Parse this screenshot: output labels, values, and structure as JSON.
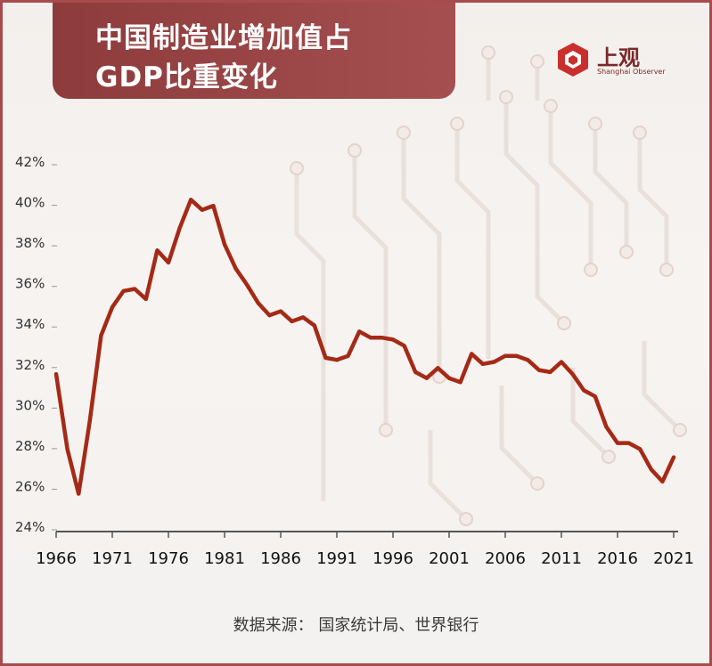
{
  "header": {
    "title_line1": "中国制造业增加值占",
    "title_line2": "GDP比重变化"
  },
  "logo": {
    "name": "上观",
    "sub": "Shanghai Observer",
    "icon": "shanghai-observer-logo-icon"
  },
  "footer": {
    "source": "数据来源： 国家统计局、世界银行"
  },
  "colors": {
    "line": "#a52a16",
    "header_bg": "#9a4748",
    "frame": "#a84b4c"
  },
  "chart_data": {
    "type": "line",
    "title": "中国制造业增加值占GDP比重变化",
    "xlabel": "",
    "ylabel": "",
    "x_tick_labels": [
      "1966",
      "1971",
      "1976",
      "1981",
      "1986",
      "1991",
      "1996",
      "2001",
      "2006",
      "2011",
      "2016",
      "2021"
    ],
    "y_tick_labels": [
      "24%",
      "26%",
      "28%",
      "30%",
      "32%",
      "34%",
      "36%",
      "38%",
      "40%",
      "42%"
    ],
    "xlim": [
      1966,
      2021
    ],
    "ylim": [
      24,
      42
    ],
    "y_unit": "%",
    "grid": false,
    "legend": "none",
    "series": [
      {
        "x": [
          1966,
          1967,
          1968,
          1969,
          1970,
          1971,
          1972,
          1973,
          1974,
          1975,
          1976,
          1977,
          1978,
          1979,
          1980,
          1981,
          1982,
          1983,
          1984,
          1985,
          1986,
          1987,
          1988,
          1989,
          1990,
          1991,
          1992,
          1993,
          1994,
          1995,
          1996,
          1997,
          1998,
          1999,
          2000,
          2001,
          2002,
          2003,
          2004,
          2005,
          2006,
          2007,
          2008,
          2009,
          2010,
          2011,
          2012,
          2013,
          2014,
          2015,
          2016,
          2017,
          2018,
          2019,
          2020,
          2021
        ],
        "values": [
          31.5,
          27.8,
          25.6,
          29.2,
          33.4,
          34.8,
          35.6,
          35.7,
          35.2,
          37.6,
          37.0,
          38.7,
          40.1,
          39.6,
          39.8,
          37.9,
          36.7,
          35.9,
          35.0,
          34.4,
          34.6,
          34.1,
          34.3,
          33.9,
          32.3,
          32.2,
          32.4,
          33.6,
          33.3,
          33.3,
          33.2,
          32.9,
          31.6,
          31.3,
          31.8,
          31.3,
          31.1,
          32.5,
          32.0,
          32.1,
          32.4,
          32.4,
          32.2,
          31.7,
          31.6,
          32.1,
          31.5,
          30.7,
          30.4,
          28.9,
          28.1,
          28.1,
          27.8,
          26.8,
          26.2,
          27.4
        ]
      }
    ]
  }
}
